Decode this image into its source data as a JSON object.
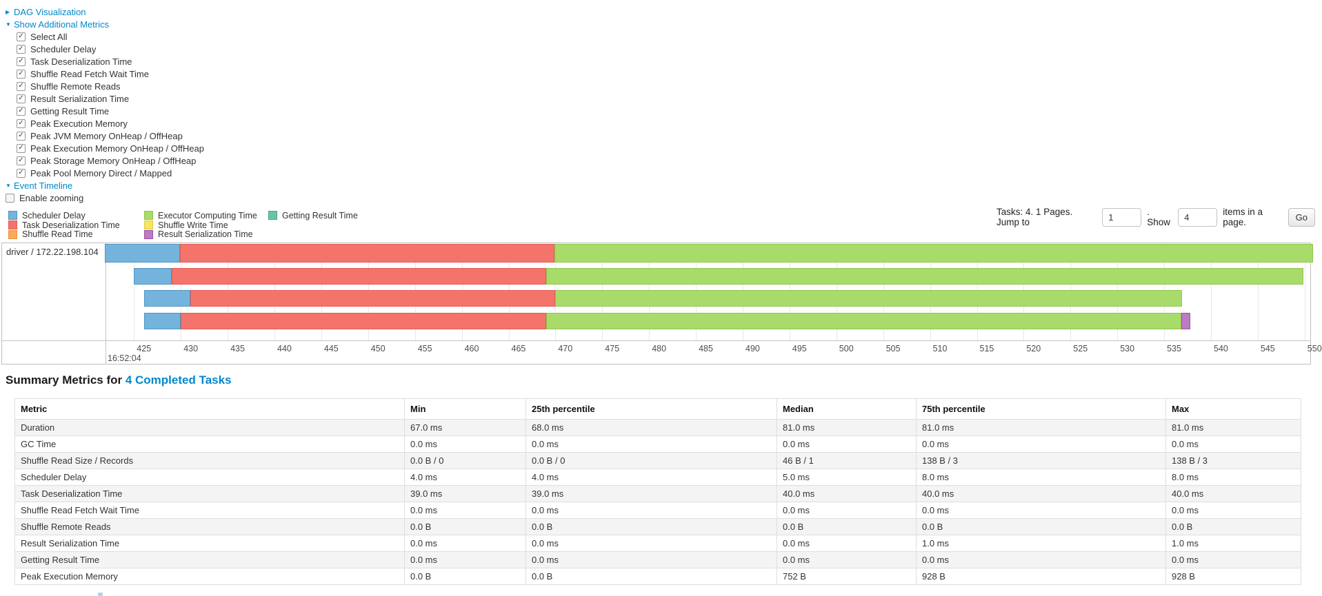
{
  "controls": {
    "dag_link": "DAG Visualization",
    "metrics_link": "Show Additional Metrics",
    "metric_checkboxes": [
      "Select All",
      "Scheduler Delay",
      "Task Deserialization Time",
      "Shuffle Read Fetch Wait Time",
      "Shuffle Remote Reads",
      "Result Serialization Time",
      "Getting Result Time",
      "Peak Execution Memory",
      "Peak JVM Memory OnHeap / OffHeap",
      "Peak Execution Memory OnHeap / OffHeap",
      "Peak Storage Memory OnHeap / OffHeap",
      "Peak Pool Memory Direct / Mapped"
    ],
    "timeline_link": "Event Timeline",
    "enable_zooming_label": "Enable zooming"
  },
  "legend": {
    "columns": [
      [
        {
          "key": "scheduler_delay",
          "label": "Scheduler Delay"
        },
        {
          "key": "task_deserialization",
          "label": "Task Deserialization Time"
        },
        {
          "key": "shuffle_read",
          "label": "Shuffle Read Time"
        }
      ],
      [
        {
          "key": "executor_computing",
          "label": "Executor Computing Time"
        },
        {
          "key": "shuffle_write",
          "label": "Shuffle Write Time"
        },
        {
          "key": "result_serialization",
          "label": "Result Serialization Time"
        }
      ],
      [
        {
          "key": "getting_result",
          "label": "Getting Result Time"
        }
      ]
    ]
  },
  "colors": {
    "scheduler_delay": {
      "fill": "#74B4DC",
      "border": "#4E94C5"
    },
    "task_deserialization": {
      "fill": "#F4746C",
      "border": "#E25B54"
    },
    "shuffle_read": {
      "fill": "#FBA95D",
      "border": "#EE9139"
    },
    "executor_computing": {
      "fill": "#A9DB6A",
      "border": "#8FC64F"
    },
    "shuffle_write": {
      "fill": "#F5E85F",
      "border": "#DECB43"
    },
    "result_serialization": {
      "fill": "#BB7CC4",
      "border": "#9C52A8"
    },
    "getting_result": {
      "fill": "#69C3A6",
      "border": "#44A886"
    },
    "link_blue": "#0088cc"
  },
  "pagination": {
    "tasks_text": "Tasks: 4. 1 Pages. Jump to",
    "jump_value": "1",
    "show_label": ". Show",
    "show_value": "4",
    "items_text": "items in a page.",
    "go_label": "Go"
  },
  "chart_data": {
    "type": "timeline",
    "group_label": "driver / 172.22.198.104",
    "time_label": "16:52:04",
    "axis": {
      "start": 425,
      "end": 550,
      "step": 5,
      "unit": "ms-of-second"
    },
    "tasks": [
      {
        "segments": [
          {
            "key": "scheduler_delay",
            "start": 421.9,
            "end": 429.9
          },
          {
            "key": "task_deserialization",
            "start": 429.9,
            "end": 469.9
          },
          {
            "key": "executor_computing",
            "start": 469.9,
            "end": 550.9
          }
        ]
      },
      {
        "segments": [
          {
            "key": "scheduler_delay",
            "start": 425.0,
            "end": 429.0
          },
          {
            "key": "task_deserialization",
            "start": 429.0,
            "end": 469.0
          },
          {
            "key": "executor_computing",
            "start": 469.0,
            "end": 549.9
          }
        ]
      },
      {
        "segments": [
          {
            "key": "scheduler_delay",
            "start": 426.1,
            "end": 431.0
          },
          {
            "key": "task_deserialization",
            "start": 431.0,
            "end": 470.0
          },
          {
            "key": "executor_computing",
            "start": 470.0,
            "end": 536.9
          }
        ]
      },
      {
        "segments": [
          {
            "key": "scheduler_delay",
            "start": 426.1,
            "end": 430.0
          },
          {
            "key": "task_deserialization",
            "start": 430.0,
            "end": 469.0
          },
          {
            "key": "executor_computing",
            "start": 469.0,
            "end": 536.8
          },
          {
            "key": "result_serialization",
            "start": 536.8,
            "end": 537.8
          }
        ]
      }
    ]
  },
  "summary": {
    "title_prefix": "Summary Metrics for ",
    "title_link": "4 Completed Tasks",
    "table": {
      "headers": [
        "Metric",
        "Min",
        "25th percentile",
        "Median",
        "75th percentile",
        "Max"
      ],
      "rows": [
        [
          "Duration",
          "67.0 ms",
          "68.0 ms",
          "81.0 ms",
          "81.0 ms",
          "81.0 ms"
        ],
        [
          "GC Time",
          "0.0 ms",
          "0.0 ms",
          "0.0 ms",
          "0.0 ms",
          "0.0 ms"
        ],
        [
          "Shuffle Read Size / Records",
          "0.0 B / 0",
          "0.0 B / 0",
          "46 B / 1",
          "138 B / 3",
          "138 B / 3"
        ],
        [
          "Scheduler Delay",
          "4.0 ms",
          "4.0 ms",
          "5.0 ms",
          "8.0 ms",
          "8.0 ms"
        ],
        [
          "Task Deserialization Time",
          "39.0 ms",
          "39.0 ms",
          "40.0 ms",
          "40.0 ms",
          "40.0 ms"
        ],
        [
          "Shuffle Read Fetch Wait Time",
          "0.0 ms",
          "0.0 ms",
          "0.0 ms",
          "0.0 ms",
          "0.0 ms"
        ],
        [
          "Shuffle Remote Reads",
          "0.0 B",
          "0.0 B",
          "0.0 B",
          "0.0 B",
          "0.0 B"
        ],
        [
          "Result Serialization Time",
          "0.0 ms",
          "0.0 ms",
          "0.0 ms",
          "1.0 ms",
          "1.0 ms"
        ],
        [
          "Getting Result Time",
          "0.0 ms",
          "0.0 ms",
          "0.0 ms",
          "0.0 ms",
          "0.0 ms"
        ],
        [
          "Peak Execution Memory",
          "0.0 B",
          "0.0 B",
          "752 B",
          "928 B",
          "928 B"
        ]
      ]
    }
  }
}
